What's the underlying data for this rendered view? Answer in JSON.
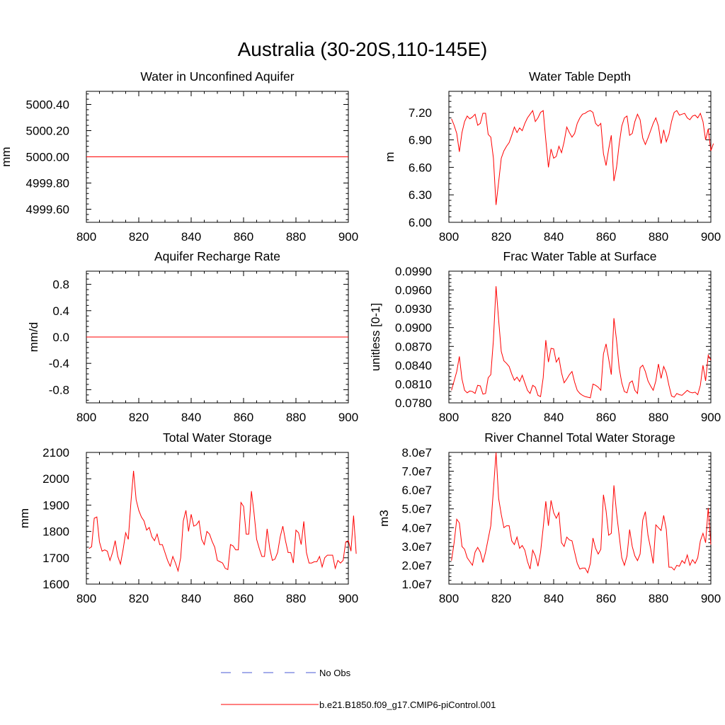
{
  "figure": {
    "title": "Australia (30-20S,110-145E)"
  },
  "legend": {
    "entries": [
      {
        "label": "No Obs",
        "color": "#4a5ad6",
        "style": "dashed"
      },
      {
        "label": "b.e21.B1850.f09_g17.CMIP6-piControl.001",
        "color": "#ff0000",
        "style": "solid"
      }
    ]
  },
  "chart_data": [
    {
      "type": "line",
      "title": "Water in Unconfined Aquifer",
      "ylabel": "mm",
      "xlim": [
        800,
        900
      ],
      "ylim": [
        4999.5,
        5000.5
      ],
      "xticks": [
        800,
        820,
        840,
        860,
        880,
        900
      ],
      "yticks": [
        4999.6,
        4999.8,
        5000.0,
        5000.2,
        5000.4
      ],
      "ytick_labels": [
        "4999.60",
        "4999.80",
        "5000.00",
        "5000.20",
        "5000.40"
      ],
      "series": [
        {
          "name": "b.e21.B1850.f09_g17.CMIP6-piControl.001",
          "color": "#ff0000",
          "x": [
            800,
            900
          ],
          "y": [
            5000.0,
            5000.0
          ]
        }
      ]
    },
    {
      "type": "line",
      "title": "Water Table Depth",
      "ylabel": "m",
      "xlim": [
        800,
        900
      ],
      "ylim": [
        6.0,
        7.43
      ],
      "xticks": [
        800,
        820,
        840,
        860,
        880,
        900
      ],
      "yticks": [
        6.0,
        6.3,
        6.6,
        6.9,
        7.2
      ],
      "ytick_labels": [
        "6.00",
        "6.30",
        "6.60",
        "6.90",
        "7.20"
      ],
      "series": [
        {
          "name": "b.e21.B1850.f09_g17.CMIP6-piControl.001",
          "color": "#ff0000",
          "x_start": 801,
          "y": [
            7.13,
            7.06,
            6.97,
            6.77,
            6.98,
            7.1,
            7.16,
            7.13,
            7.15,
            7.18,
            7.06,
            7.08,
            7.19,
            7.19,
            6.96,
            6.93,
            6.7,
            6.19,
            6.44,
            6.7,
            6.78,
            6.83,
            6.87,
            6.95,
            7.04,
            6.98,
            7.03,
            7.0,
            7.08,
            7.14,
            7.18,
            7.22,
            7.1,
            7.14,
            7.2,
            7.22,
            6.9,
            6.6,
            6.8,
            6.7,
            6.72,
            6.83,
            6.76,
            6.88,
            7.04,
            6.98,
            6.93,
            6.97,
            7.08,
            7.14,
            7.18,
            7.19,
            7.21,
            7.22,
            7.2,
            7.08,
            7.05,
            7.08,
            6.75,
            6.62,
            6.8,
            6.95,
            6.45,
            6.6,
            6.85,
            7.05,
            7.14,
            7.16,
            6.95,
            6.97,
            7.1,
            7.18,
            7.12,
            6.92,
            6.85,
            6.92,
            7.0,
            7.08,
            7.14,
            7.05,
            6.86,
            7.01,
            6.88,
            6.96,
            7.1,
            7.2,
            7.22,
            7.17,
            7.18,
            7.19,
            7.14,
            7.12,
            7.16,
            7.17,
            7.14,
            7.19,
            7.1,
            6.9,
            7.02,
            6.78,
            6.86
          ]
        }
      ]
    },
    {
      "type": "line",
      "title": "Aquifer Recharge Rate",
      "ylabel": "mm/d",
      "xlim": [
        800,
        900
      ],
      "ylim": [
        -1.0,
        1.0
      ],
      "xticks": [
        800,
        820,
        840,
        860,
        880,
        900
      ],
      "yticks": [
        -0.8,
        -0.4,
        0.0,
        0.4,
        0.8
      ],
      "ytick_labels": [
        "-0.8",
        "-0.4",
        "0.0",
        "0.4",
        "0.8"
      ],
      "series": [
        {
          "name": "b.e21.B1850.f09_g17.CMIP6-piControl.001",
          "color": "#ff0000",
          "x": [
            800,
            900
          ],
          "y": [
            0.0,
            0.0
          ]
        }
      ]
    },
    {
      "type": "line",
      "title": "Frac Water Table at Surface",
      "ylabel": "unitless [0-1]",
      "xlim": [
        800,
        900
      ],
      "ylim": [
        0.078,
        0.099
      ],
      "xticks": [
        800,
        820,
        840,
        860,
        880,
        900
      ],
      "yticks": [
        0.078,
        0.081,
        0.084,
        0.087,
        0.09,
        0.093,
        0.096,
        0.099
      ],
      "ytick_labels": [
        "0.0780",
        "0.0810",
        "0.0840",
        "0.0870",
        "0.0900",
        "0.0930",
        "0.0960",
        "0.0990"
      ],
      "series": [
        {
          "name": "b.e21.B1850.f09_g17.CMIP6-piControl.001",
          "color": "#ff0000",
          "x_start": 801,
          "y": [
            0.08,
            0.0815,
            0.083,
            0.0854,
            0.0818,
            0.08,
            0.0796,
            0.0799,
            0.0798,
            0.0795,
            0.0808,
            0.0807,
            0.0794,
            0.0795,
            0.082,
            0.0825,
            0.088,
            0.0966,
            0.0912,
            0.0862,
            0.0847,
            0.0843,
            0.0838,
            0.0826,
            0.0816,
            0.0821,
            0.0814,
            0.0824,
            0.0812,
            0.08,
            0.0795,
            0.0808,
            0.0805,
            0.0792,
            0.079,
            0.082,
            0.088,
            0.0845,
            0.0867,
            0.0866,
            0.0845,
            0.0852,
            0.0828,
            0.0812,
            0.0818,
            0.0825,
            0.083,
            0.0813,
            0.08,
            0.0795,
            0.0792,
            0.079,
            0.0789,
            0.0788,
            0.081,
            0.0808,
            0.0805,
            0.08,
            0.0858,
            0.0874,
            0.085,
            0.0825,
            0.0915,
            0.088,
            0.0836,
            0.0812,
            0.0798,
            0.0796,
            0.0812,
            0.0815,
            0.08,
            0.0795,
            0.0836,
            0.084,
            0.083,
            0.0815,
            0.0807,
            0.08,
            0.0815,
            0.0842,
            0.0819,
            0.0838,
            0.0828,
            0.0808,
            0.0791,
            0.0789,
            0.0795,
            0.0793,
            0.0792,
            0.0796,
            0.08,
            0.0797,
            0.0796,
            0.0797,
            0.0793,
            0.0808,
            0.084,
            0.0815,
            0.0856,
            0.0848
          ]
        }
      ]
    },
    {
      "type": "line",
      "title": "Total Water Storage",
      "ylabel": "mm",
      "xlim": [
        800,
        900
      ],
      "ylim": [
        1600,
        2100
      ],
      "xticks": [
        800,
        820,
        840,
        860,
        880,
        900
      ],
      "yticks": [
        1600,
        1700,
        1800,
        1900,
        2000,
        2100
      ],
      "ytick_labels": [
        "1600",
        "1700",
        "1800",
        "1900",
        "2000",
        "2100"
      ],
      "series": [
        {
          "name": "b.e21.B1850.f09_g17.CMIP6-piControl.001",
          "color": "#ff0000",
          "x_start": 801,
          "y": [
            1735,
            1742,
            1850,
            1855,
            1760,
            1725,
            1730,
            1725,
            1690,
            1720,
            1765,
            1705,
            1676,
            1730,
            1795,
            1770,
            1910,
            2030,
            1920,
            1880,
            1855,
            1840,
            1805,
            1815,
            1780,
            1765,
            1790,
            1750,
            1750,
            1720,
            1690,
            1668,
            1705,
            1680,
            1650,
            1700,
            1840,
            1880,
            1800,
            1865,
            1820,
            1825,
            1840,
            1770,
            1750,
            1800,
            1790,
            1762,
            1740,
            1690,
            1685,
            1680,
            1660,
            1655,
            1750,
            1745,
            1730,
            1730,
            1910,
            1895,
            1790,
            1790,
            1953,
            1870,
            1770,
            1735,
            1705,
            1705,
            1810,
            1735,
            1690,
            1695,
            1720,
            1780,
            1820,
            1765,
            1720,
            1720,
            1680,
            1805,
            1795,
            1750,
            1838,
            1720,
            1680,
            1680,
            1685,
            1685,
            1705,
            1665,
            1700,
            1710,
            1710,
            1710,
            1660,
            1690,
            1680,
            1690,
            1760,
            1765,
            1725,
            1860,
            1715
          ]
        }
      ]
    },
    {
      "type": "line",
      "title": "River Channel Total Water Storage",
      "ylabel": "m3",
      "xlim": [
        800,
        900
      ],
      "ylim": [
        10000000,
        80000000
      ],
      "xticks": [
        800,
        820,
        840,
        860,
        880,
        900
      ],
      "yticks": [
        10000000,
        20000000,
        30000000,
        40000000,
        50000000,
        60000000,
        70000000,
        80000000
      ],
      "ytick_labels": [
        "1.0e7",
        "2.0e7",
        "3.0e7",
        "4.0e7",
        "5.0e7",
        "6.0e7",
        "7.0e7",
        "8.0e7"
      ],
      "series": [
        {
          "name": "b.e21.B1850.f09_g17.CMIP6-piControl.001",
          "color": "#ff0000",
          "x_start": 801,
          "y": [
            22500000,
            32000000,
            44500000,
            42500000,
            30000000,
            28500000,
            24000000,
            22000000,
            20000000,
            27000000,
            29500000,
            27000000,
            21500000,
            27000000,
            34000000,
            41000000,
            60000000,
            80000000,
            55500000,
            47000000,
            40000000,
            41000000,
            41000000,
            33000000,
            31000000,
            35000000,
            29000000,
            30500000,
            28000000,
            22000000,
            18000000,
            28000000,
            25000000,
            19500000,
            27000000,
            40000000,
            54000000,
            41000000,
            54500000,
            48000000,
            45000000,
            48000000,
            32000000,
            30000000,
            35000000,
            33500000,
            33000000,
            27000000,
            21000000,
            18000000,
            18500000,
            18500000,
            16000000,
            21000000,
            34500000,
            29000000,
            26000000,
            28500000,
            57500000,
            49000000,
            36000000,
            37000000,
            62500000,
            48000000,
            36000000,
            24000000,
            20000000,
            25000000,
            39000000,
            30000000,
            25000000,
            22500000,
            26000000,
            44000000,
            48500000,
            36000000,
            29000000,
            21000000,
            41500000,
            40000000,
            38500000,
            46500000,
            39000000,
            19000000,
            19000000,
            17500000,
            20000000,
            19500000,
            22500000,
            21000000,
            25500000,
            20000000,
            23000000,
            21000000,
            24000000,
            33000000,
            37000000,
            32000000,
            50500000,
            31000000
          ]
        }
      ]
    }
  ]
}
